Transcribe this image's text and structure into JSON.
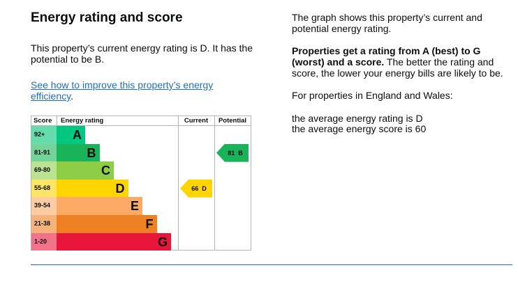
{
  "left": {
    "title": "Energy rating and score",
    "summary": "This property’s current energy rating is D. It has the potential to be B.",
    "link": "See how to improve this property’s energy efficiency",
    "link_suffix": "."
  },
  "right": {
    "intro": "The graph shows this property’s current and potential energy rating.",
    "bold": "Properties get a rating from A (best) to G (worst) and a score.",
    "rest": " The better the rating and score, the lower your energy bills are likely to be.",
    "region": "For properties in England and Wales:",
    "avg_rating": "the average energy rating is D",
    "avg_score": "the average energy score is 60"
  },
  "chart_data": {
    "type": "table",
    "headers": {
      "score": "Score",
      "rating": "Energy rating",
      "current": "Current",
      "potential": "Potential"
    },
    "bands": [
      {
        "letter": "A",
        "range": "92+",
        "color": "#00c781",
        "tint": "#66dcad"
      },
      {
        "letter": "B",
        "range": "81-91",
        "color": "#19b459",
        "tint": "#75d29b"
      },
      {
        "letter": "C",
        "range": "69-80",
        "color": "#8dce46",
        "tint": "#bbe290"
      },
      {
        "letter": "D",
        "range": "55-68",
        "color": "#ffd500",
        "tint": "#ffe566"
      },
      {
        "letter": "E",
        "range": "39-54",
        "color": "#fcaa65",
        "tint": "#fdcca3"
      },
      {
        "letter": "F",
        "range": "21-38",
        "color": "#ef8023",
        "tint": "#f5b37b"
      },
      {
        "letter": "G",
        "range": "1-20",
        "color": "#e9153b",
        "tint": "#f27389"
      }
    ],
    "current": {
      "score": 66,
      "band": "D",
      "label": "66  D"
    },
    "potential": {
      "score": 81,
      "band": "B",
      "label": "81  B"
    }
  }
}
